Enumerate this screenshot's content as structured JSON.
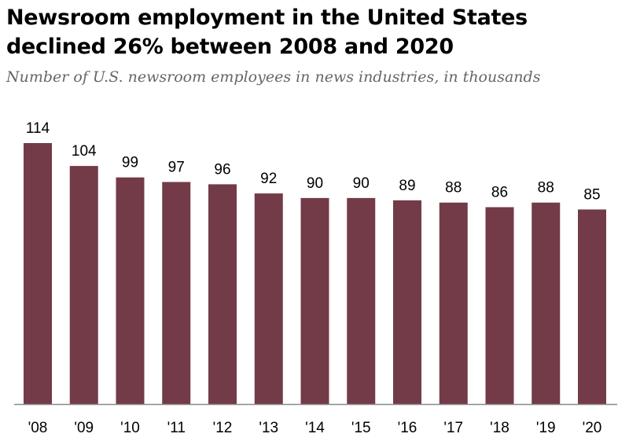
{
  "chart_data": {
    "type": "bar",
    "title": "Newsroom employment in the United States declined 26% between 2008 and 2020",
    "subtitle": "Number of U.S. newsroom employees in news industries, in thousands",
    "categories": [
      "'08",
      "'09",
      "'10",
      "'11",
      "'12",
      "'13",
      "'14",
      "'15",
      "'16",
      "'17",
      "'18",
      "'19",
      "'20"
    ],
    "values": [
      114,
      104,
      99,
      97,
      96,
      92,
      90,
      90,
      89,
      88,
      86,
      88,
      85
    ],
    "value_labels": [
      "114",
      "104",
      "99",
      "97",
      "96",
      "92",
      "90",
      "90",
      "89",
      "88",
      "86",
      "88",
      "85"
    ],
    "xlabel": "",
    "ylabel": "",
    "ylim": [
      0,
      114
    ],
    "grid": false,
    "legend": "none",
    "colors": {
      "bar": "#723b47",
      "axis": "#8a8a8a",
      "label": "#000000"
    }
  }
}
